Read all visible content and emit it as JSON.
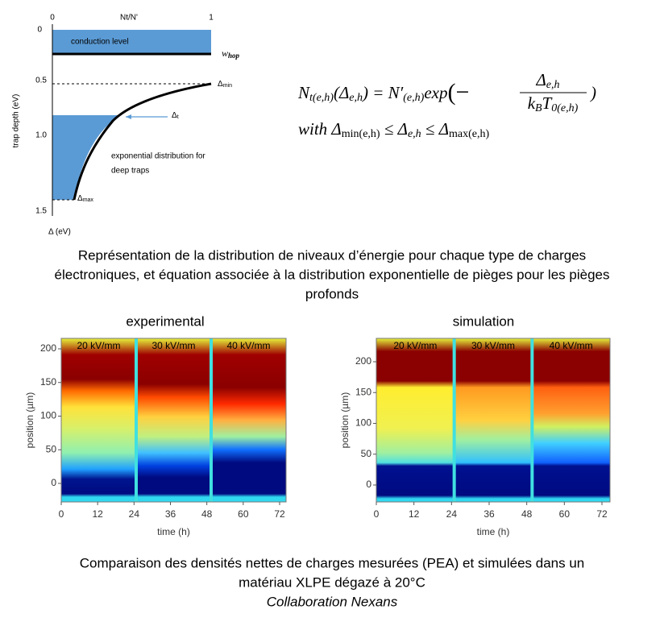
{
  "diagram": {
    "x_axis_label": "Nt/N'",
    "x_ticks": [
      "0",
      "1"
    ],
    "y_axis_label": "trap depth (eV)",
    "y_ticks": [
      "0",
      "0.5",
      "1.0",
      "1.5"
    ],
    "bottom_label": "Δ (eV)",
    "conduction_label": "conduction level",
    "w_hop": "w",
    "w_hop_sub": "hop",
    "delta_min": [
      "Δ",
      "min"
    ],
    "delta_t": [
      "Δ",
      "t"
    ],
    "delta_max": [
      "Δ",
      "max"
    ],
    "distribution_label": [
      "exponential distribution for",
      "deep traps"
    ]
  },
  "equation": {
    "line1": [
      "N",
      "t(e,h)",
      "(Δ",
      "e,h",
      ") = N′",
      "(e,h)",
      "exp",
      "(−",
      ")"
    ],
    "numerator": [
      "Δ",
      "e,h"
    ],
    "denominator": [
      "k",
      "B",
      "T",
      "0(e,h)"
    ],
    "line2": [
      "with Δ",
      "min(e,h)",
      " ≤ Δ",
      "e,h",
      " ≤ Δ",
      "max(e,h)"
    ]
  },
  "caption1": [
    "Représentation de la distribution de niveaux d’énergie pour chaque type de charges",
    "électroniques, et équation associée à la distribution exponentielle de pièges pour les pièges",
    "profonds"
  ],
  "panels": [
    {
      "title": "experimental",
      "fields": [
        "20 kV/mm",
        "30 kV/mm",
        "40 kV/mm"
      ],
      "x_ticks": [
        "0",
        "12",
        "24",
        "36",
        "48",
        "60",
        "72"
      ],
      "y_ticks": [
        "200",
        "150",
        "100",
        "50",
        "0"
      ],
      "x_label": "time (h)",
      "y_label": "position (µm)"
    },
    {
      "title": "simulation",
      "fields": [
        "20 kV/mm",
        "30 kV/mm",
        "40 kV/mm"
      ],
      "x_ticks": [
        "0",
        "12",
        "24",
        "36",
        "48",
        "60",
        "72"
      ],
      "y_ticks": [
        "200",
        "150",
        "100",
        "50",
        "0"
      ],
      "x_label": "time (h)",
      "y_label": "position (µm)"
    }
  ],
  "caption2": [
    "Comparaison des densités nettes de charges mesurées (PEA) et simulées dans un",
    "matériau XLPE dégazé à 20°C"
  ],
  "credit": "Collaboration Nexans"
}
